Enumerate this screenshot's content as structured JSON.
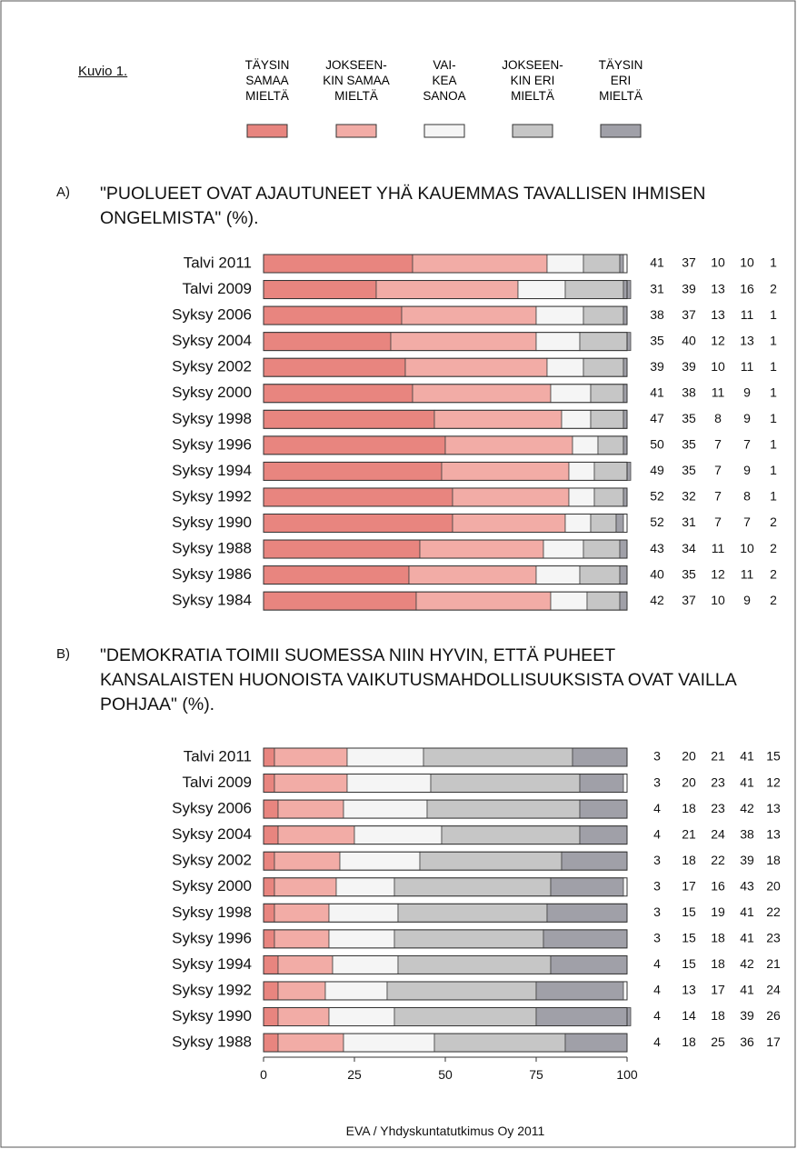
{
  "figure_label": "Kuvio 1.",
  "footer": "EVA / Yhdyskuntatutkimus Oy 2011",
  "chart_data": [
    {
      "type": "bar",
      "orientation": "horizontal",
      "stacked": true,
      "label": "A)",
      "title": "\"PUOLUEET OVAT AJAUTUNEET YHÄ KAUEMMAS TAVALLISEN IHMISEN ONGELMISTA\" (%).",
      "categories": [
        "Talvi 2011",
        "Talvi 2009",
        "Syksy 2006",
        "Syksy 2004",
        "Syksy 2002",
        "Syksy 2000",
        "Syksy 1998",
        "Syksy 1996",
        "Syksy 1994",
        "Syksy 1992",
        "Syksy 1990",
        "Syksy 1988",
        "Syksy 1986",
        "Syksy 1984"
      ],
      "series": [
        {
          "name": "TÄYSIN\nSAMAA\nMIELTÄ",
          "color": "#e8857f",
          "values": [
            41,
            31,
            38,
            35,
            39,
            41,
            47,
            50,
            49,
            52,
            52,
            43,
            40,
            42
          ]
        },
        {
          "name": "JOKSEEN-\nKIN SAMAA\nMIELTÄ",
          "color": "#f2aca6",
          "values": [
            37,
            39,
            37,
            40,
            39,
            38,
            35,
            35,
            35,
            32,
            31,
            34,
            35,
            37
          ]
        },
        {
          "name": "VAI-\nKEA\nSANOA",
          "color": "#f5f5f5",
          "values": [
            10,
            13,
            13,
            12,
            10,
            11,
            8,
            7,
            7,
            7,
            7,
            11,
            12,
            10
          ]
        },
        {
          "name": "JOKSEEN-\nKIN ERI\nMIELTÄ",
          "color": "#c6c6c6",
          "values": [
            10,
            16,
            11,
            13,
            11,
            9,
            9,
            7,
            9,
            8,
            7,
            10,
            11,
            9
          ]
        },
        {
          "name": "TÄYSIN\nERI\nMIELTÄ",
          "color": "#a0a0a8",
          "values": [
            1,
            2,
            1,
            1,
            1,
            1,
            1,
            1,
            1,
            1,
            2,
            2,
            2,
            2
          ]
        }
      ],
      "xlim": [
        0,
        100
      ]
    },
    {
      "type": "bar",
      "orientation": "horizontal",
      "stacked": true,
      "label": "B)",
      "title": "\"DEMOKRATIA TOIMII SUOMESSA NIIN HYVIN, ETTÄ PUHEET KANSALAISTEN HUONOISTA VAIKUTUSMAHDOLLISUUKSISTA OVAT VAILLA POHJAA\" (%).",
      "categories": [
        "Talvi 2011",
        "Talvi 2009",
        "Syksy 2006",
        "Syksy 2004",
        "Syksy 2002",
        "Syksy 2000",
        "Syksy 1998",
        "Syksy 1996",
        "Syksy 1994",
        "Syksy 1992",
        "Syksy 1990",
        "Syksy 1988"
      ],
      "series": [
        {
          "color": "#e8857f",
          "values": [
            3,
            3,
            4,
            4,
            3,
            3,
            3,
            3,
            4,
            4,
            4,
            4
          ]
        },
        {
          "color": "#f2aca6",
          "values": [
            20,
            20,
            18,
            21,
            18,
            17,
            15,
            15,
            15,
            13,
            14,
            18
          ]
        },
        {
          "color": "#f5f5f5",
          "values": [
            21,
            23,
            23,
            24,
            22,
            16,
            19,
            18,
            18,
            17,
            18,
            25
          ]
        },
        {
          "color": "#c6c6c6",
          "values": [
            41,
            41,
            42,
            38,
            39,
            43,
            41,
            41,
            42,
            41,
            39,
            36
          ]
        },
        {
          "color": "#a0a0a8",
          "values": [
            15,
            12,
            13,
            13,
            18,
            20,
            22,
            23,
            21,
            24,
            26,
            17
          ]
        }
      ],
      "xlim": [
        0,
        100
      ],
      "xticks": [
        0,
        25,
        50,
        75,
        100
      ]
    }
  ]
}
